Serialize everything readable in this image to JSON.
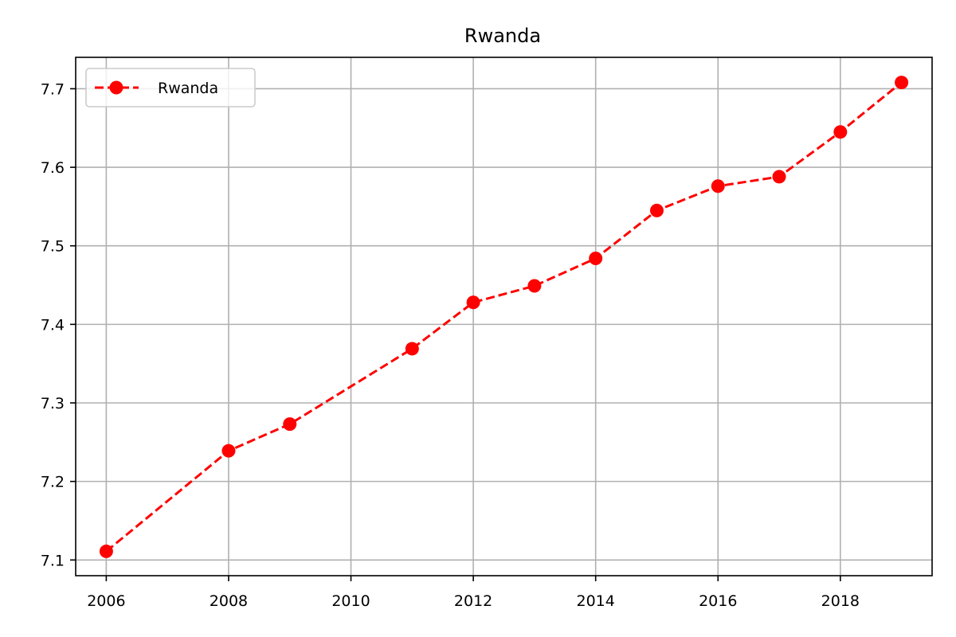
{
  "chart_data": {
    "type": "line",
    "title": "Rwanda",
    "xlabel": "",
    "ylabel": "",
    "xlim": [
      2005.5,
      2019.5
    ],
    "ylim": [
      7.08,
      7.74
    ],
    "xticks": [
      2006,
      2008,
      2010,
      2012,
      2014,
      2016,
      2018
    ],
    "yticks": [
      7.1,
      7.2,
      7.3,
      7.4,
      7.5,
      7.6,
      7.7
    ],
    "grid": true,
    "legend_position": "upper-left",
    "series": [
      {
        "name": "Rwanda",
        "color": "#ff0000",
        "line_style": "dashed",
        "marker": "circle",
        "points": [
          {
            "x": 2006,
            "y": 7.111
          },
          {
            "x": 2008,
            "y": 7.239
          },
          {
            "x": 2009,
            "y": 7.273
          },
          {
            "x": 2011,
            "y": 7.369
          },
          {
            "x": 2012,
            "y": 7.428
          },
          {
            "x": 2013,
            "y": 7.449
          },
          {
            "x": 2014,
            "y": 7.484
          },
          {
            "x": 2015,
            "y": 7.545
          },
          {
            "x": 2016,
            "y": 7.576
          },
          {
            "x": 2017,
            "y": 7.588
          },
          {
            "x": 2018,
            "y": 7.645
          },
          {
            "x": 2019,
            "y": 7.708
          }
        ]
      }
    ]
  }
}
